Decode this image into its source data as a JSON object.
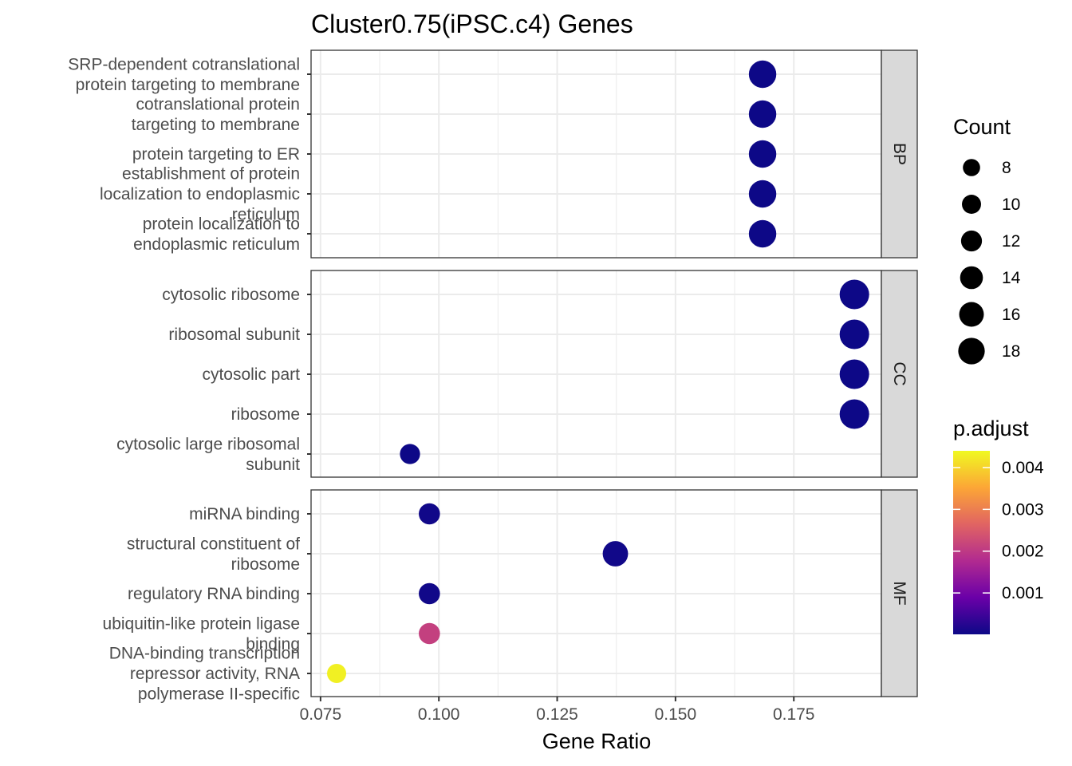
{
  "chart_data": {
    "type": "scatter",
    "title": "Cluster0.75(iPSC.c4) Genes",
    "xlabel": "Gene Ratio",
    "ylabel": "",
    "xlim": [
      0.073,
      0.1935
    ],
    "x_ticks": [
      0.075,
      0.1,
      0.125,
      0.15,
      0.175
    ],
    "x_tick_labels": [
      "0.075",
      "0.100",
      "0.125",
      "0.150",
      "0.175"
    ],
    "grid": true,
    "legend_position": "right",
    "facets": [
      {
        "name": "BP",
        "points": [
          {
            "term": "SRP-dependent cotranslational protein targeting to membrane",
            "label_lines": [
              "SRP-dependent cotranslational",
              "protein targeting to membrane"
            ],
            "x": 0.1684,
            "count": 16,
            "p_adjust": 1e-05
          },
          {
            "term": "cotranslational protein targeting to membrane",
            "label_lines": [
              "cotranslational protein",
              "targeting to membrane"
            ],
            "x": 0.1684,
            "count": 16,
            "p_adjust": 1e-05
          },
          {
            "term": "protein targeting to ER",
            "label_lines": [
              "protein targeting to ER"
            ],
            "x": 0.1684,
            "count": 16,
            "p_adjust": 1e-05
          },
          {
            "term": "establishment of protein localization to endoplasmic reticulum",
            "label_lines": [
              "establishment of protein",
              "localization to endoplasmic",
              "reticulum"
            ],
            "x": 0.1684,
            "count": 16,
            "p_adjust": 1e-05
          },
          {
            "term": "protein localization to endoplasmic reticulum",
            "label_lines": [
              "protein localization to",
              "endoplasmic reticulum"
            ],
            "x": 0.1684,
            "count": 16,
            "p_adjust": 1e-05
          }
        ]
      },
      {
        "name": "CC",
        "points": [
          {
            "term": "cytosolic ribosome",
            "label_lines": [
              "cytosolic ribosome"
            ],
            "x": 0.1878,
            "count": 18,
            "p_adjust": 1e-05
          },
          {
            "term": "ribosomal subunit",
            "label_lines": [
              "ribosomal subunit"
            ],
            "x": 0.1878,
            "count": 18,
            "p_adjust": 1e-05
          },
          {
            "term": "cytosolic part",
            "label_lines": [
              "cytosolic part"
            ],
            "x": 0.1878,
            "count": 18,
            "p_adjust": 1e-05
          },
          {
            "term": "ribosome",
            "label_lines": [
              "ribosome"
            ],
            "x": 0.1878,
            "count": 18,
            "p_adjust": 1e-05
          },
          {
            "term": "cytosolic large ribosomal subunit",
            "label_lines": [
              "cytosolic large ribosomal",
              "subunit"
            ],
            "x": 0.0939,
            "count": 9,
            "p_adjust": 1e-05
          }
        ]
      },
      {
        "name": "MF",
        "points": [
          {
            "term": "miRNA binding",
            "label_lines": [
              "miRNA binding"
            ],
            "x": 0.098,
            "count": 10,
            "p_adjust": 5e-05
          },
          {
            "term": "structural constituent of ribosome",
            "label_lines": [
              "structural constituent of",
              "ribosome"
            ],
            "x": 0.1373,
            "count": 14,
            "p_adjust": 5e-05
          },
          {
            "term": "regulatory RNA binding",
            "label_lines": [
              "regulatory RNA binding"
            ],
            "x": 0.098,
            "count": 10,
            "p_adjust": 5e-05
          },
          {
            "term": "ubiquitin-like protein ligase binding",
            "label_lines": [
              "ubiquitin-like protein ligase",
              "binding"
            ],
            "x": 0.098,
            "count": 10,
            "p_adjust": 0.0021
          },
          {
            "term": "DNA-binding transcription repressor activity, RNA polymerase II-specific",
            "label_lines": [
              "DNA-binding transcription",
              "repressor activity, RNA",
              "polymerase II-specific"
            ],
            "x": 0.0784,
            "count": 8,
            "p_adjust": 0.0043
          }
        ]
      }
    ],
    "size_legend": {
      "title": "Count",
      "values": [
        8,
        10,
        12,
        14,
        16,
        18
      ],
      "labels": [
        "8",
        "10",
        "12",
        "14",
        "16",
        "18"
      ]
    },
    "color_legend": {
      "title": "p.adjust",
      "range": [
        1e-05,
        0.0044
      ],
      "ticks": [
        0.001,
        0.002,
        0.003,
        0.004
      ],
      "tick_labels": [
        "0.001",
        "0.002",
        "0.003",
        "0.004"
      ],
      "colormap": "plasma",
      "stops": [
        "#0d0887",
        "#6a00a8",
        "#b12a90",
        "#e16462",
        "#fca636",
        "#f0f921"
      ]
    }
  }
}
